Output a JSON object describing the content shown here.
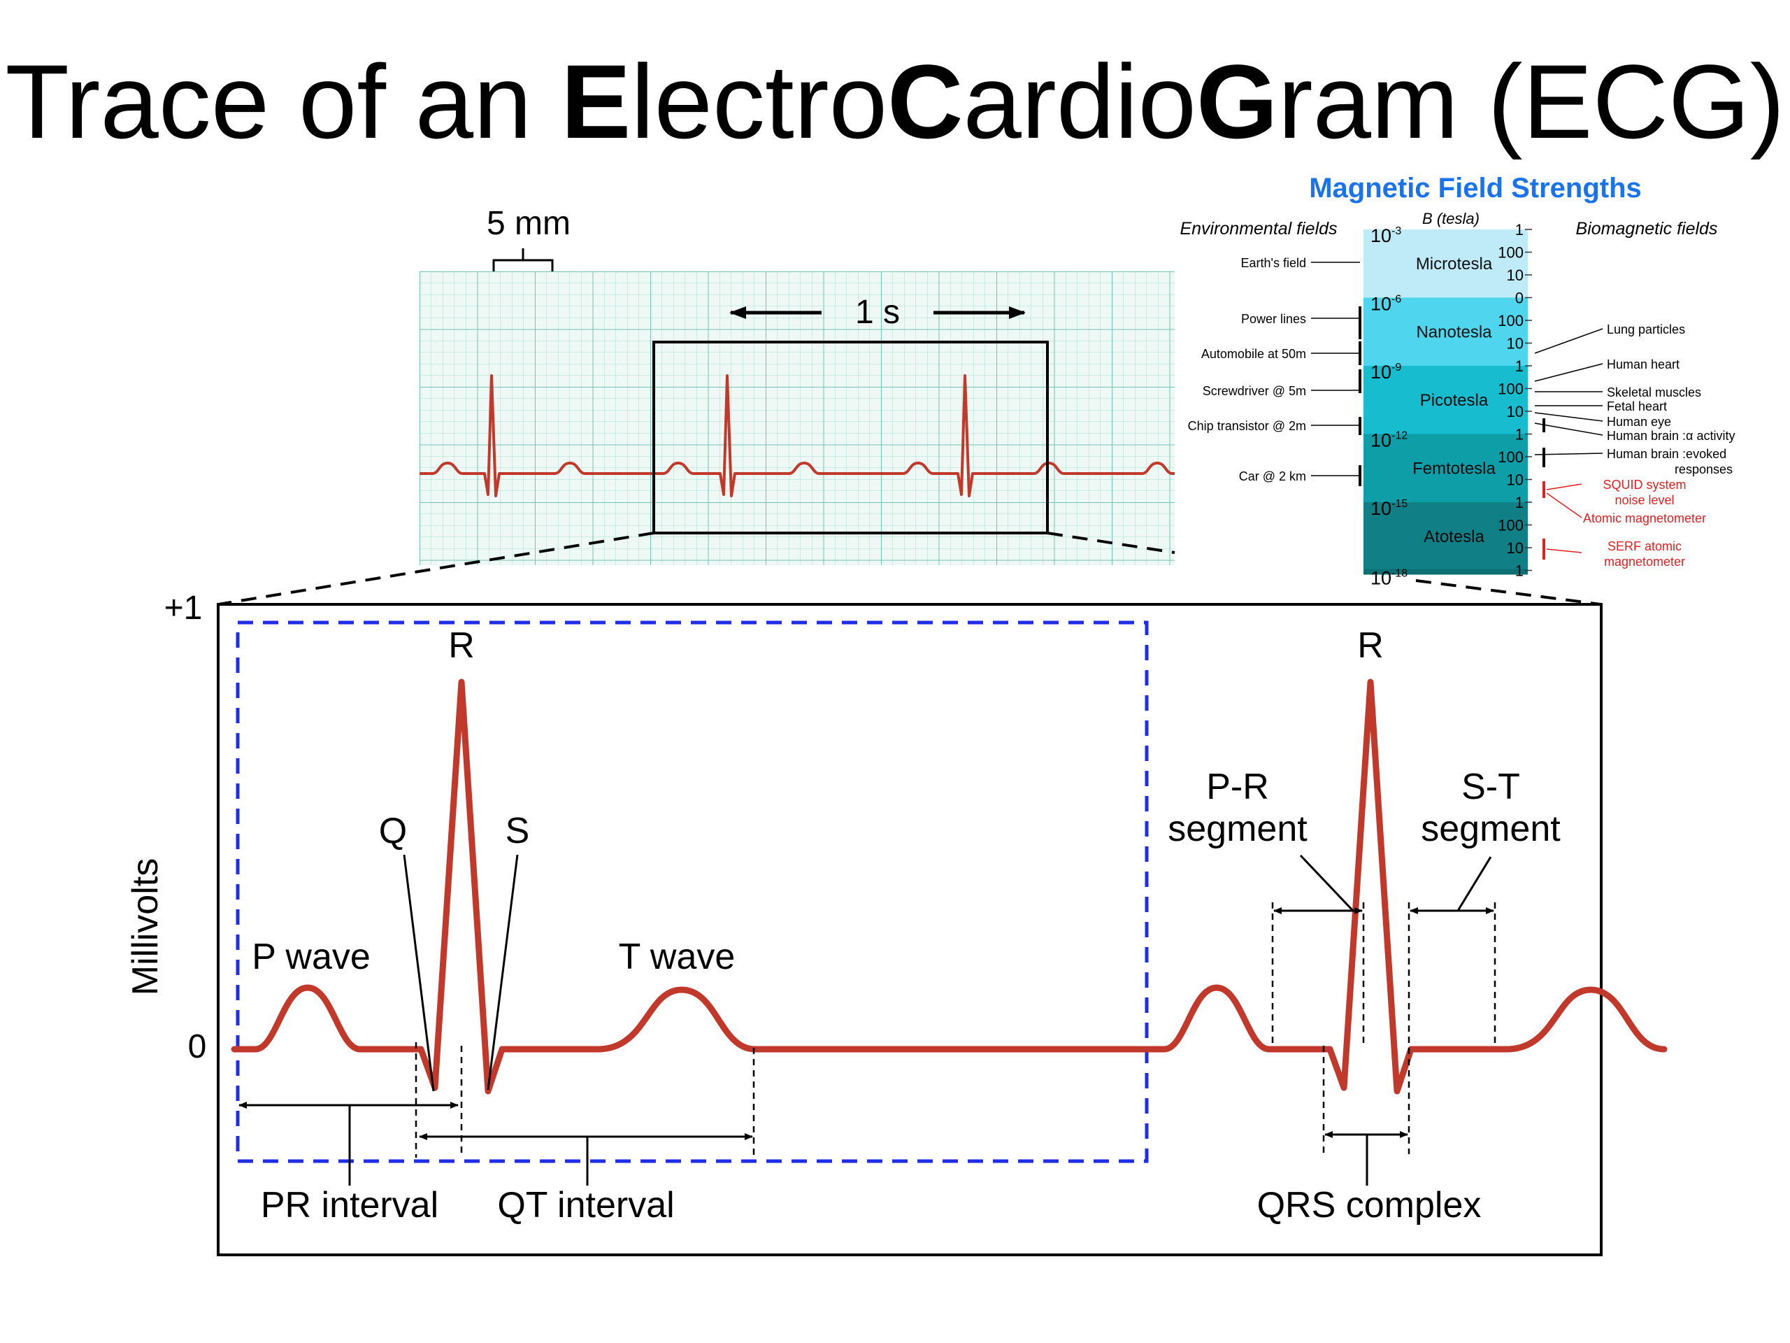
{
  "slide": {
    "title_parts": [
      {
        "text": "Trace of an ",
        "bold": false
      },
      {
        "text": "E",
        "bold": true
      },
      {
        "text": "lectro",
        "bold": false
      },
      {
        "text": "C",
        "bold": true
      },
      {
        "text": "ardio",
        "bold": false
      },
      {
        "text": "G",
        "bold": true
      },
      {
        "text": "ram (ECG)",
        "bold": false
      }
    ]
  },
  "strip": {
    "scale_label": "5 mm",
    "time_label": "1 s"
  },
  "ecg": {
    "y_axis_label": "Millivolts",
    "y_max_label": "+1",
    "y_zero_label": "0",
    "labels": {
      "r1": "R",
      "r2": "R",
      "q": "Q",
      "s": "S",
      "p_wave": "P wave",
      "t_wave": "T wave",
      "pr_segment_1": "P-R",
      "pr_segment_2": "segment",
      "st_segment_1": "S-T",
      "st_segment_2": "segment",
      "pr_interval": "PR interval",
      "qt_interval": "QT interval",
      "qrs_complex": "QRS complex"
    },
    "colors": {
      "trace": "#c0392b",
      "highlight_box": "#1f2ee6",
      "grid": "#8fd3c4"
    }
  },
  "magnetic": {
    "title": "Magnetic Field Strengths",
    "left_heading": "Environmental fields",
    "right_heading": "Biomagnetic fields",
    "axis_label": "B (tesla)",
    "bands": [
      {
        "name": "Microtesla",
        "exp": "-3",
        "color": "#bfeaf7"
      },
      {
        "name": "Nanotesla",
        "exp": "-6",
        "color": "#4fd6ee"
      },
      {
        "name": "Picotesla",
        "exp": "-9",
        "color": "#17bccf"
      },
      {
        "name": "Femtotesla",
        "exp": "-12",
        "color": "#0e9ea8"
      },
      {
        "name": "Atotesla",
        "exp": "-15",
        "color": "#107f86"
      }
    ],
    "bottom_exp": "-18",
    "ticks": [
      "1",
      "100",
      "10",
      "0",
      "100",
      "10",
      "1",
      "100",
      "10",
      "1",
      "100",
      "10",
      "1",
      "100",
      "10",
      "1"
    ],
    "environmental": [
      "Earth's field",
      "Power lines",
      "Automobile at 50m",
      "Screwdriver @ 5m",
      "Chip transistor @ 2m",
      "Car @ 2 km"
    ],
    "biomagnetic": [
      "Lung particles",
      "Human heart",
      "Skeletal muscles",
      "Fetal heart",
      "Human eye",
      "Human brain :α activity",
      "Human brain :evoked",
      "responses"
    ],
    "sensors": [
      "SQUID system",
      "noise level",
      "Atomic magnetometer",
      "SERF atomic",
      "magnetometer"
    ],
    "colors": {
      "title": "#1a73e8",
      "sensor": "#e02020"
    }
  }
}
